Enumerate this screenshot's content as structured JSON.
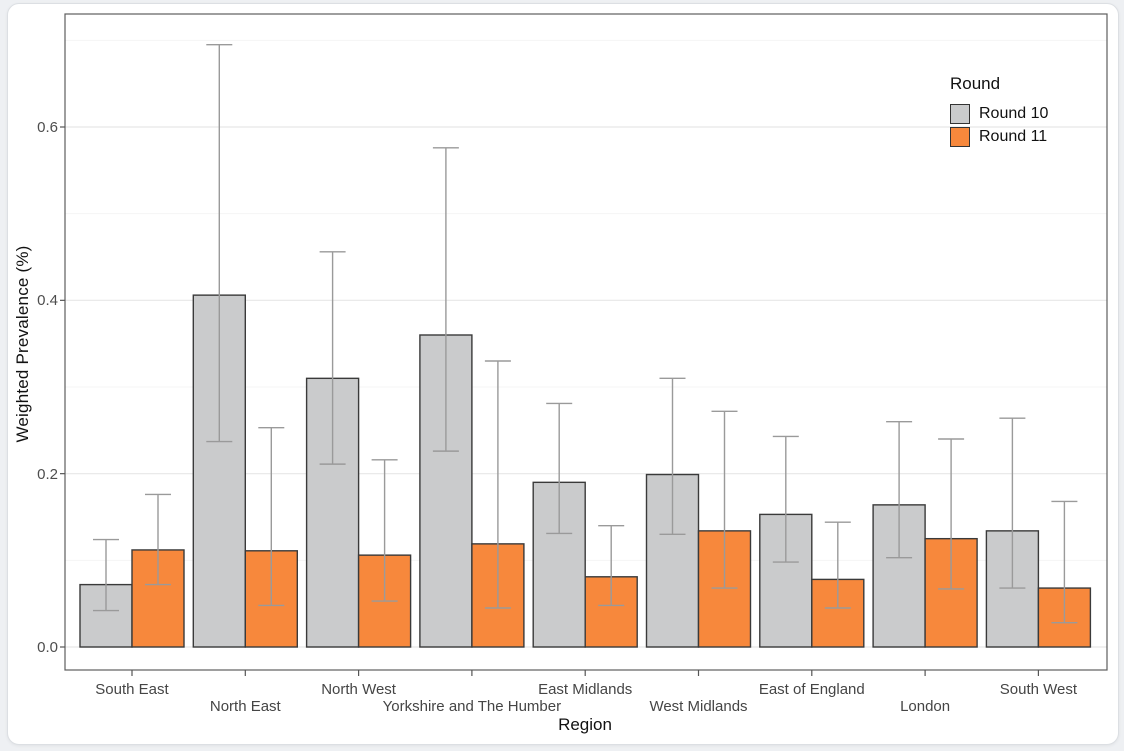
{
  "page": {
    "background_color": "#eef0f3",
    "card_background": "#ffffff"
  },
  "chart_data": {
    "type": "bar",
    "title": "",
    "xlabel": "Region",
    "ylabel": "Weighted Prevalence (%)",
    "ylim": [
      0,
      0.73
    ],
    "grid": "on",
    "y_ticks": [
      {
        "label": "0.0",
        "value": 0.0
      },
      {
        "label": "0.2",
        "value": 0.2
      },
      {
        "label": "0.4",
        "value": 0.4
      },
      {
        "label": "0.6",
        "value": 0.6
      }
    ],
    "y_minor_gridlines": [
      0.1,
      0.3,
      0.5,
      0.7
    ],
    "legend": {
      "title": "Round",
      "position": "top-right",
      "entries": [
        {
          "label": "Round 10",
          "color": "#cacbcc"
        },
        {
          "label": "Round 11",
          "color": "#f7883c"
        }
      ]
    },
    "categories": [
      "South East",
      "North East",
      "North West",
      "Yorkshire and The Humber",
      "East Midlands",
      "West Midlands",
      "East of England",
      "London",
      "South West"
    ],
    "series": [
      {
        "name": "Round 10",
        "color": "#cacbcc",
        "values": [
          0.072,
          0.406,
          0.31,
          0.36,
          0.19,
          0.199,
          0.153,
          0.164,
          0.134
        ],
        "ci_low": [
          0.042,
          0.237,
          0.211,
          0.226,
          0.131,
          0.13,
          0.098,
          0.103,
          0.068
        ],
        "ci_high": [
          0.124,
          0.695,
          0.456,
          0.576,
          0.281,
          0.31,
          0.243,
          0.26,
          0.264
        ]
      },
      {
        "name": "Round 11",
        "color": "#f7883c",
        "values": [
          0.112,
          0.111,
          0.106,
          0.119,
          0.081,
          0.134,
          0.078,
          0.125,
          0.068
        ],
        "ci_low": [
          0.072,
          0.048,
          0.053,
          0.045,
          0.048,
          0.068,
          0.045,
          0.067,
          0.028
        ],
        "ci_high": [
          0.176,
          0.253,
          0.216,
          0.33,
          0.14,
          0.272,
          0.144,
          0.24,
          0.168
        ]
      }
    ],
    "error_bars": true
  },
  "colors": {
    "bar_border": "#3a3a3a",
    "error_bar": "#9a9a9a",
    "grid_major": "#e7e7e7",
    "grid_minor": "#f4f4f4",
    "panel_border": "#5d5d5d",
    "tick_mark": "#555555",
    "tick_text": "#4d4d4d",
    "axis_title": "#111111"
  }
}
